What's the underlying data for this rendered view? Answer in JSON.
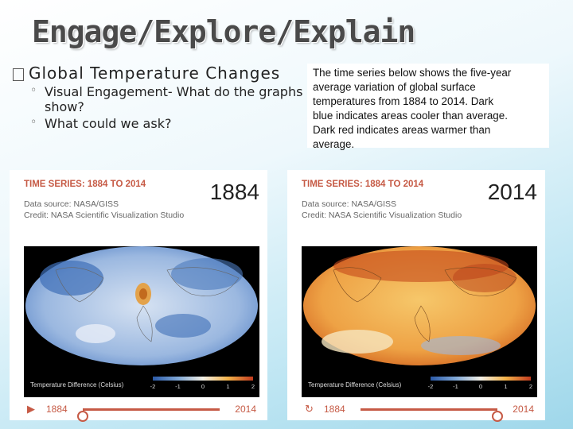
{
  "slide": {
    "title": "Engage/Explore/Explain",
    "bullet_main": "Global Temperature Changes",
    "sub_bullets": [
      "Visual Engagement- What do the graphs show?",
      "What could we ask?"
    ],
    "note_lines": [
      "The time series below shows the five-year",
      "average variation of global surface",
      "temperatures from 1884 to 2014. Dark",
      "blue indicates areas cooler than average.",
      "Dark red indicates areas warmer than",
      "average."
    ]
  },
  "cards": [
    {
      "series_title": "TIME SERIES: 1884 TO 2014",
      "source": "Data source: NASA/GISS",
      "credit": "Credit: NASA Scientific Visualization Studio",
      "year": "1884",
      "legend_title": "Temperature Difference (Celsius)",
      "legend_ticks": [
        "-2",
        "-1",
        "0",
        "1",
        "2"
      ],
      "timeline_start": "1884",
      "timeline_end": "2014",
      "control_icon": "play-icon",
      "slider_position": 0,
      "map_palette": "cool"
    },
    {
      "series_title": "TIME SERIES: 1884 TO 2014",
      "source": "Data source: NASA/GISS",
      "credit": "Credit: NASA Scientific Visualization Studio",
      "year": "2014",
      "legend_title": "Temperature Difference (Celsius)",
      "legend_ticks": [
        "-2",
        "-1",
        "0",
        "1",
        "2"
      ],
      "timeline_start": "1884",
      "timeline_end": "2014",
      "control_icon": "replay-icon",
      "slider_position": 1,
      "map_palette": "warm"
    }
  ],
  "colors": {
    "accent": "#c65a45",
    "cool_dark": "#2b5aa8",
    "warm_dark": "#c23a1e"
  }
}
